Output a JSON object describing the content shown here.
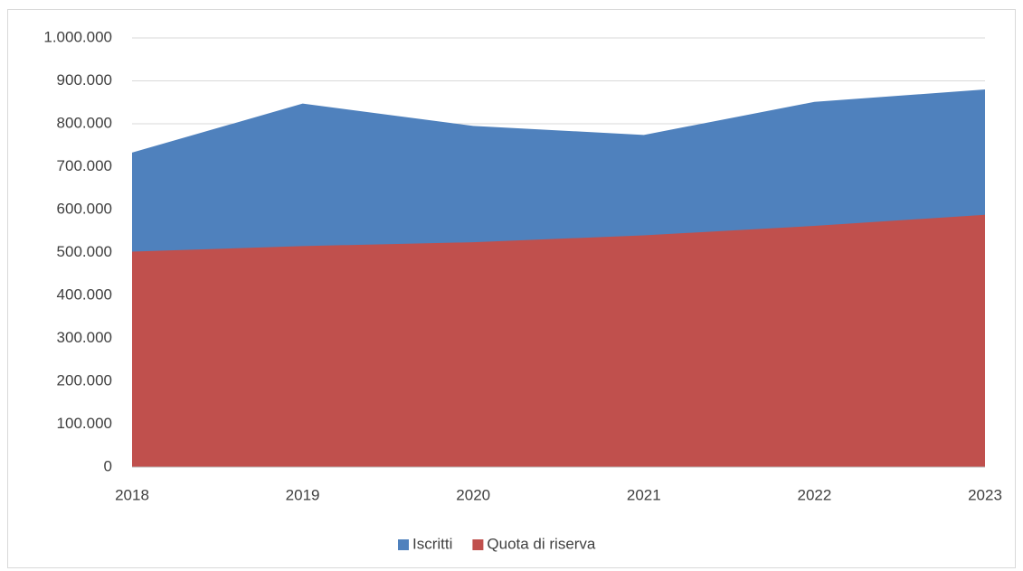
{
  "chart_data": {
    "type": "area",
    "categories": [
      "2018",
      "2019",
      "2020",
      "2021",
      "2022",
      "2023"
    ],
    "series": [
      {
        "name": "Iscritti",
        "color": "#4f81bd",
        "values": [
          733000,
          847000,
          795000,
          774000,
          851000,
          880000
        ]
      },
      {
        "name": "Quota di riserva",
        "color": "#c0504d",
        "values": [
          502000,
          515000,
          524000,
          540000,
          562000,
          588000
        ]
      }
    ],
    "ylim": [
      0,
      1000000
    ],
    "yticks": [
      0,
      {
        "value": 100000,
        "label": "100.000"
      },
      {
        "value": 200000,
        "label": "200.000"
      },
      {
        "value": 300000,
        "label": "300.000"
      },
      {
        "value": 400000,
        "label": "400.000"
      },
      {
        "value": 500000,
        "label": "500.000"
      },
      {
        "value": 600000,
        "label": "600.000"
      },
      {
        "value": 700000,
        "label": "700.000"
      },
      {
        "value": 800000,
        "label": "800.000"
      },
      {
        "value": 900000,
        "label": "900.000"
      },
      {
        "value": 1000000,
        "label": "1.000.000"
      }
    ],
    "grid": true,
    "legend": "bottom"
  }
}
